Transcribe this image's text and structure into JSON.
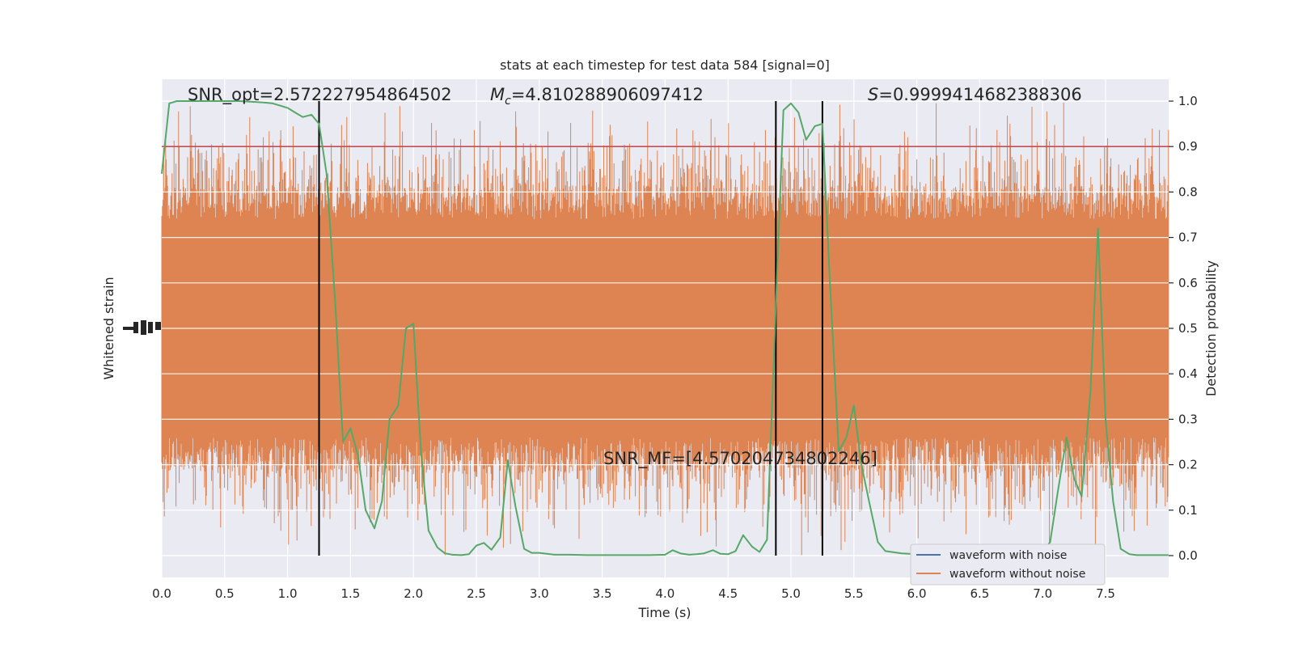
{
  "chart_data": {
    "type": "line",
    "title": "stats at each timestep for test data 584 [signal=0]",
    "xlabel": "Time (s)",
    "ylabel_left": "Whitened strain",
    "ylabel_right": "Detection probability",
    "xlim": [
      0.0,
      8.0
    ],
    "ylim_right": [
      -0.05,
      1.05
    ],
    "xticks": [
      "0.0",
      "0.5",
      "1.0",
      "1.5",
      "2.0",
      "2.5",
      "3.0",
      "3.5",
      "4.0",
      "4.5",
      "5.0",
      "5.5",
      "6.0",
      "6.5",
      "7.0",
      "7.5"
    ],
    "yticks_right": [
      "0.0",
      "0.1",
      "0.2",
      "0.3",
      "0.4",
      "0.5",
      "0.6",
      "0.7",
      "0.8",
      "0.9",
      "1.0"
    ],
    "threshold": 0.9,
    "vlines": [
      1.25,
      4.88,
      5.25
    ],
    "annotations": {
      "snr_opt": "SNR_opt=2.572227954864502",
      "mc_symbol": "M",
      "mc_sub": "c",
      "mc_value": "=4.810288906097412",
      "s_symbol": "S",
      "s_value": "=0.9999414682388306",
      "snr_mf": "SNR_MF=[4.570204734802246]"
    },
    "legend": {
      "placement": "lower-right",
      "entries": [
        "waveform with noise",
        "waveform without noise"
      ]
    },
    "colors": {
      "background": "#eaeaf2",
      "grid": "#ffffff",
      "noise": "#dd8452",
      "with_noise": "#4c72b0",
      "probability": "#55a868",
      "threshold": "#c44e52",
      "vline": "#000000"
    },
    "noise_band": {
      "center": 0.5,
      "typical_halfwidth": 0.3,
      "max_halfwidth": 0.5
    },
    "probability": {
      "x": [
        0.0,
        0.06,
        0.12,
        0.19,
        0.25,
        0.31,
        0.38,
        0.44,
        0.5,
        0.56,
        0.62,
        0.69,
        0.75,
        0.81,
        0.88,
        0.94,
        1.0,
        1.06,
        1.12,
        1.19,
        1.25,
        1.31,
        1.38,
        1.44,
        1.5,
        1.56,
        1.62,
        1.69,
        1.75,
        1.81,
        1.88,
        1.94,
        2.0,
        2.06,
        2.12,
        2.19,
        2.25,
        2.31,
        2.38,
        2.44,
        2.5,
        2.56,
        2.62,
        2.69,
        2.75,
        2.81,
        2.88,
        2.94,
        3.0,
        3.12,
        3.25,
        3.38,
        3.5,
        3.62,
        3.75,
        3.88,
        4.0,
        4.06,
        4.12,
        4.19,
        4.25,
        4.31,
        4.38,
        4.44,
        4.5,
        4.56,
        4.62,
        4.69,
        4.75,
        4.81,
        4.88,
        4.94,
        5.0,
        5.06,
        5.12,
        5.19,
        5.25,
        5.31,
        5.38,
        5.44,
        5.5,
        5.56,
        5.62,
        5.69,
        5.75,
        5.88,
        6.0,
        6.12,
        6.25,
        6.38,
        6.5,
        6.62,
        6.75,
        6.88,
        7.0,
        7.06,
        7.12,
        7.19,
        7.25,
        7.31,
        7.38,
        7.44,
        7.5,
        7.56,
        7.62,
        7.69,
        7.75,
        7.88,
        8.0
      ],
      "y": [
        0.84,
        0.995,
        1.0,
        1.0,
        1.0,
        1.0,
        1.0,
        1.0,
        1.0,
        1.0,
        1.0,
        0.999,
        0.998,
        0.997,
        0.995,
        0.99,
        0.985,
        0.975,
        0.965,
        0.97,
        0.95,
        0.84,
        0.55,
        0.25,
        0.28,
        0.22,
        0.1,
        0.06,
        0.12,
        0.3,
        0.33,
        0.5,
        0.51,
        0.23,
        0.055,
        0.018,
        0.005,
        0.002,
        0.001,
        0.003,
        0.022,
        0.028,
        0.013,
        0.04,
        0.21,
        0.11,
        0.015,
        0.006,
        0.006,
        0.002,
        0.002,
        0.001,
        0.001,
        0.001,
        0.001,
        0.001,
        0.002,
        0.012,
        0.005,
        0.002,
        0.003,
        0.005,
        0.012,
        0.004,
        0.003,
        0.01,
        0.045,
        0.02,
        0.008,
        0.035,
        0.55,
        0.98,
        0.995,
        0.975,
        0.915,
        0.945,
        0.95,
        0.6,
        0.23,
        0.26,
        0.33,
        0.2,
        0.12,
        0.03,
        0.01,
        0.005,
        0.003,
        0.002,
        0.001,
        0.001,
        0.001,
        0.001,
        0.001,
        0.002,
        0.005,
        0.03,
        0.14,
        0.26,
        0.17,
        0.13,
        0.36,
        0.72,
        0.3,
        0.12,
        0.015,
        0.003,
        0.001,
        0.001,
        0.001
      ]
    }
  }
}
